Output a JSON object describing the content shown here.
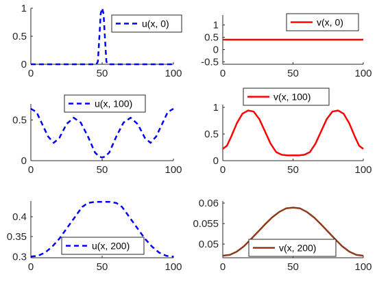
{
  "chart_data": [
    {
      "type": "line",
      "xlim": [
        0,
        100
      ],
      "ylim": [
        0,
        1
      ],
      "xticks": [
        0,
        50,
        100
      ],
      "xtick_labels": [
        "0",
        "50",
        "100"
      ],
      "yticks": [
        0,
        0.5,
        1
      ],
      "ytick_labels": [
        "0",
        "0.5",
        "1"
      ],
      "grid": false,
      "legend_position": "top-right",
      "series": [
        {
          "name": "u(x, 0)",
          "color": "#0000ff",
          "style": "dashed",
          "x": [
            0,
            46,
            47,
            48,
            49,
            50,
            51,
            52,
            53,
            54,
            100
          ],
          "y": [
            0,
            0,
            0.05,
            0.45,
            0.9,
            1.0,
            0.9,
            0.45,
            0.05,
            0,
            0
          ]
        }
      ]
    },
    {
      "type": "line",
      "xlim": [
        0,
        100
      ],
      "ylim": [
        -0.6,
        1.4
      ],
      "xticks": [
        0,
        50,
        100
      ],
      "xtick_labels": [
        "0",
        "50",
        "100"
      ],
      "yticks": [
        -0.5,
        0,
        0.5,
        1
      ],
      "ytick_labels": [
        "-0.5",
        "0",
        "0.5",
        "1"
      ],
      "grid": false,
      "legend_position": "top-right",
      "series": [
        {
          "name": "v(x, 0)",
          "color": "#ff0000",
          "style": "solid",
          "x": [
            0,
            100
          ],
          "y": [
            0.4,
            0.4
          ]
        }
      ]
    },
    {
      "type": "line",
      "xlim": [
        0,
        100
      ],
      "ylim": [
        0,
        0.7
      ],
      "xticks": [
        0,
        50,
        100
      ],
      "xtick_labels": [
        "0",
        "50",
        "100"
      ],
      "yticks": [
        0,
        0.5
      ],
      "ytick_labels": [
        "0",
        "0.5"
      ],
      "grid": false,
      "legend_position": "top-center",
      "series": [
        {
          "name": "u(x, 100)",
          "color": "#0000ff",
          "style": "dashed",
          "x": [
            0,
            4,
            8,
            12,
            16,
            20,
            25,
            30,
            35,
            40,
            45,
            48,
            50,
            52,
            55,
            60,
            65,
            70,
            75,
            80,
            84,
            88,
            92,
            96,
            100
          ],
          "y": [
            0.64,
            0.6,
            0.45,
            0.3,
            0.22,
            0.28,
            0.45,
            0.53,
            0.47,
            0.3,
            0.1,
            0.05,
            0.04,
            0.05,
            0.1,
            0.3,
            0.47,
            0.53,
            0.45,
            0.28,
            0.22,
            0.3,
            0.45,
            0.6,
            0.64
          ]
        }
      ]
    },
    {
      "type": "line",
      "xlim": [
        0,
        100
      ],
      "ylim": [
        0,
        1.05
      ],
      "xticks": [
        0,
        50,
        100
      ],
      "xtick_labels": [
        "0",
        "50",
        "100"
      ],
      "yticks": [
        0,
        0.5,
        1
      ],
      "ytick_labels": [
        "0",
        "0.5",
        "1"
      ],
      "grid": false,
      "legend_position": "top-center",
      "series": [
        {
          "name": "v(x, 100)",
          "color": "#ff0000",
          "style": "solid",
          "x": [
            0,
            3,
            6,
            10,
            14,
            18,
            22,
            26,
            30,
            34,
            38,
            42,
            46,
            50,
            54,
            58,
            62,
            66,
            70,
            74,
            78,
            82,
            86,
            90,
            94,
            97,
            100
          ],
          "y": [
            0.22,
            0.28,
            0.45,
            0.7,
            0.88,
            0.94,
            0.92,
            0.78,
            0.55,
            0.32,
            0.16,
            0.11,
            0.1,
            0.1,
            0.1,
            0.11,
            0.16,
            0.32,
            0.55,
            0.78,
            0.92,
            0.94,
            0.88,
            0.7,
            0.45,
            0.28,
            0.22
          ]
        }
      ]
    },
    {
      "type": "line",
      "xlim": [
        0,
        100
      ],
      "ylim": [
        0.297,
        0.44
      ],
      "xticks": [
        0,
        50,
        100
      ],
      "xtick_labels": [
        "0",
        "50",
        "100"
      ],
      "yticks": [
        0.3,
        0.35,
        0.4
      ],
      "ytick_labels": [
        "0.3",
        "0.35",
        "0.4"
      ],
      "grid": false,
      "legend_position": "bottom-center",
      "series": [
        {
          "name": "u(x, 200)",
          "color": "#0000ff",
          "style": "dashed",
          "x": [
            0,
            5,
            10,
            15,
            20,
            25,
            30,
            33,
            36,
            40,
            45,
            50,
            55,
            60,
            64,
            67,
            70,
            75,
            80,
            85,
            90,
            95,
            100
          ],
          "y": [
            0.3,
            0.302,
            0.31,
            0.325,
            0.345,
            0.37,
            0.395,
            0.41,
            0.425,
            0.435,
            0.438,
            0.438,
            0.438,
            0.435,
            0.425,
            0.41,
            0.395,
            0.37,
            0.345,
            0.325,
            0.31,
            0.302,
            0.3
          ]
        }
      ]
    },
    {
      "type": "line",
      "xlim": [
        0,
        100
      ],
      "ylim": [
        0.0467,
        0.0605
      ],
      "xticks": [
        0,
        50,
        100
      ],
      "xtick_labels": [
        "0",
        "50",
        "100"
      ],
      "yticks": [
        0.05,
        0.055,
        0.06
      ],
      "ytick_labels": [
        "0.05",
        "0.055",
        "0.06"
      ],
      "grid": false,
      "legend_position": "bottom-center",
      "series": [
        {
          "name": "v(x, 200)",
          "color": "#8b3a1a",
          "style": "solid",
          "x": [
            0,
            5,
            10,
            15,
            20,
            25,
            30,
            35,
            40,
            45,
            50,
            55,
            60,
            65,
            70,
            75,
            80,
            85,
            90,
            95,
            100
          ],
          "y": [
            0.0472,
            0.0474,
            0.0482,
            0.0495,
            0.0512,
            0.053,
            0.0548,
            0.0565,
            0.0578,
            0.0587,
            0.0589,
            0.0587,
            0.0578,
            0.0565,
            0.0548,
            0.053,
            0.0512,
            0.0495,
            0.0482,
            0.0474,
            0.0472
          ]
        }
      ]
    }
  ]
}
